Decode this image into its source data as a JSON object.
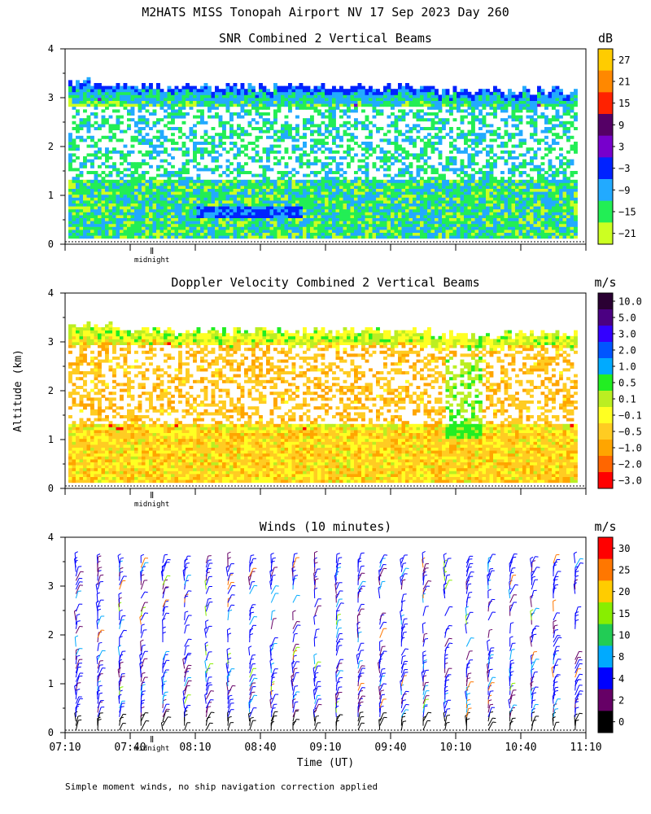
{
  "page_title": "M2HATS MISS Tonopah Airport NV  17 Sep 2023 Day 260",
  "y_axis_label": "Altitude (km)",
  "x_axis_label": "Time (UT)",
  "footnote": "Simple moment winds, no ship navigation correction applied",
  "midnight_label": "midnight",
  "time_ticks": [
    "07:10",
    "07:40",
    "08:10",
    "08:40",
    "09:10",
    "09:40",
    "10:10",
    "10:40",
    "11:10"
  ],
  "altitude_ticks": [
    "0",
    "1",
    "2",
    "3",
    "4"
  ],
  "chart_data": [
    {
      "type": "heatmap",
      "title": "SNR Combined 2 Vertical Beams",
      "colorbar_unit": "dB",
      "colorbar_labels": [
        "27",
        "21",
        "15",
        "9",
        "3",
        "−3",
        "−9",
        "−15",
        "−21"
      ],
      "colorbar_colors": [
        "#ffcc00",
        "#ff8800",
        "#ff2200",
        "#550066",
        "#7700cc",
        "#0022ff",
        "#22aaff",
        "#22ee55",
        "#ccff22"
      ],
      "x_range_minutes_after_0710": [
        0,
        240
      ],
      "ylim_km": [
        0,
        4
      ],
      "signal_top_km": 3.2,
      "signal_bottom_km": 0.12,
      "features": [
        "clear-air gaps 1.3–2.7 km",
        "strong layer near 0.6 km",
        "top layer near 3.2 km"
      ]
    },
    {
      "type": "heatmap",
      "title": "Doppler Velocity Combined 2 Vertical Beams",
      "colorbar_unit": "m/s",
      "colorbar_labels": [
        "10.0",
        "5.0",
        "3.0",
        "2.0",
        "1.0",
        "0.5",
        "0.1",
        "−0.1",
        "−0.5",
        "−1.0",
        "−2.0",
        "−3.0"
      ],
      "colorbar_colors": [
        "#2a0033",
        "#4b0082",
        "#3300ff",
        "#0055ff",
        "#00aaff",
        "#22ee22",
        "#bbee22",
        "#ffff22",
        "#ffcc22",
        "#ffa500",
        "#ff6600",
        "#ff0000"
      ],
      "x_range_minutes_after_0710": [
        0,
        240
      ],
      "ylim_km": [
        0,
        4
      ],
      "signal_top_km": 3.2,
      "signal_bottom_km": 0.12
    },
    {
      "type": "scatter",
      "title": "Winds (10 minutes)",
      "colorbar_unit": "m/s",
      "colorbar_labels": [
        "30",
        "25",
        "20",
        "15",
        "10",
        "8",
        "4",
        "2",
        "0"
      ],
      "colorbar_colors": [
        "#ff0000",
        "#ff7700",
        "#ffcc00",
        "#88ee00",
        "#22cc55",
        "#00aaff",
        "#0000ff",
        "#660066",
        "#000000"
      ],
      "x_range_minutes_after_0710": [
        0,
        240
      ],
      "ylim_km": [
        0,
        4
      ],
      "barb_interval_minutes": 10,
      "barb_columns": 24
    }
  ]
}
